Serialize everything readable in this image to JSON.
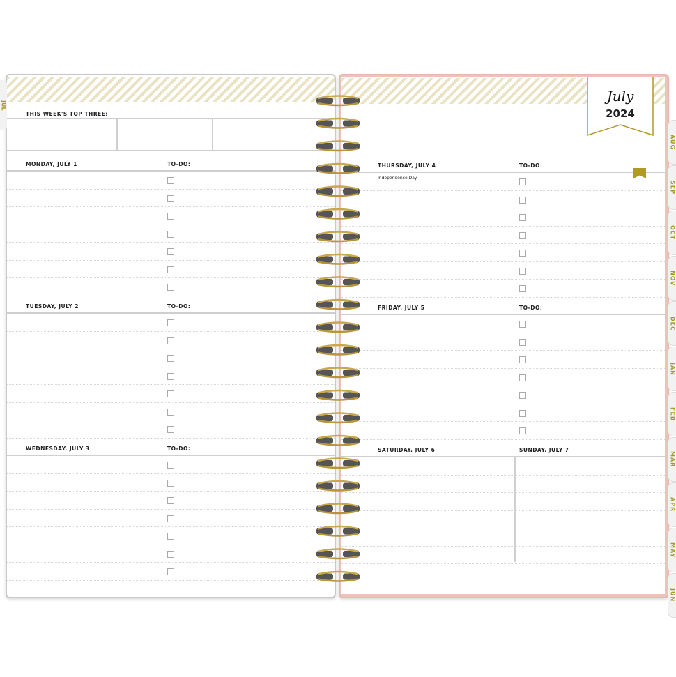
{
  "month_flag": {
    "month": "July",
    "year": "2024"
  },
  "left_tab": "JUL",
  "month_tabs": [
    "AUG",
    "SEP",
    "OCT",
    "NOV",
    "DEC",
    "JAN",
    "FEB",
    "MAR",
    "APR",
    "MAY",
    "JUN"
  ],
  "top_three_label": "THIS WEEK'S TOP THREE:",
  "todo_label": "TO-DO:",
  "left_days": [
    {
      "label": "MONDAY, JULY 1",
      "note": ""
    },
    {
      "label": "TUESDAY, JULY 2",
      "note": ""
    },
    {
      "label": "WEDNESDAY, JULY 3",
      "note": ""
    }
  ],
  "right_days": [
    {
      "label": "THURSDAY, JULY 4",
      "note": "Independence Day"
    },
    {
      "label": "FRIDAY, JULY 5",
      "note": ""
    }
  ],
  "weekend": {
    "saturday": "SATURDAY, JULY 6",
    "sunday": "SUNDAY, JULY 7"
  },
  "colors": {
    "gold": "#b09a22",
    "pink": "#ecc3bb",
    "stripe": "#e9e3c3"
  }
}
